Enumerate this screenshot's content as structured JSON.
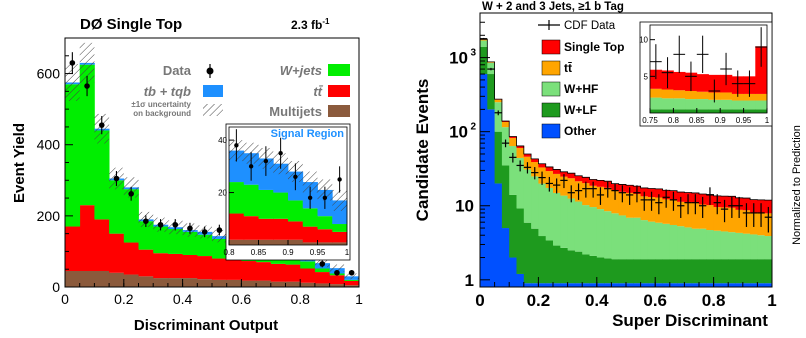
{
  "chart_data": [
    {
      "type": "bar",
      "stacked": true,
      "title": "DØ Single Top",
      "luminosity": "2.3 fb",
      "luminosity_unit_superscript": "-1",
      "xlabel": "Discriminant Output",
      "ylabel": "Event Yield",
      "xlim": [
        0,
        1
      ],
      "ylim": [
        0,
        700
      ],
      "xticks": [
        "0",
        "0.2",
        "0.4",
        "0.6",
        "0.8",
        "1"
      ],
      "yticks": [
        "0",
        "200",
        "400",
        "600"
      ],
      "bin_centers": [
        0.025,
        0.075,
        0.125,
        0.175,
        0.225,
        0.275,
        0.325,
        0.375,
        0.425,
        0.475,
        0.525,
        0.575,
        0.625,
        0.675,
        0.725,
        0.775,
        0.825,
        0.875,
        0.925,
        0.975
      ],
      "series": [
        {
          "name": "Multijets",
          "color": "#8b5a3c",
          "values": [
            45,
            45,
            45,
            40,
            35,
            30,
            25,
            25,
            25,
            22,
            20,
            20,
            18,
            18,
            15,
            15,
            12,
            10,
            8,
            5
          ]
        },
        {
          "name": "tt̄",
          "color": "#ff0000",
          "values": [
            125,
            185,
            145,
            110,
            90,
            75,
            70,
            68,
            65,
            65,
            60,
            58,
            55,
            52,
            50,
            48,
            40,
            32,
            25,
            12
          ]
        },
        {
          "name": "W+jets",
          "color": "#00ee00",
          "values": [
            400,
            395,
            250,
            150,
            150,
            80,
            75,
            70,
            65,
            60,
            55,
            50,
            45,
            40,
            35,
            30,
            20,
            10,
            5,
            3
          ]
        },
        {
          "name": "tb + tqb",
          "color": "#1e90ff",
          "values": [
            5,
            5,
            5,
            5,
            5,
            5,
            5,
            5,
            5,
            8,
            8,
            10,
            10,
            12,
            12,
            15,
            15,
            15,
            15,
            10
          ]
        }
      ],
      "data_points": {
        "name": "Data",
        "values": [
          630,
          565,
          455,
          305,
          262,
          185,
          175,
          175,
          165,
          155,
          160,
          145,
          135,
          122,
          118,
          105,
          98,
          65,
          40,
          40
        ]
      },
      "legend": {
        "placement": "top-right",
        "entries": [
          "Data",
          "tb + tqb",
          "±1σ uncertainty",
          "on background",
          "W+jets",
          "tt̄",
          "Multijets"
        ]
      },
      "inset": {
        "title": "Signal Region",
        "xlim": [
          0.8,
          1
        ],
        "ylim": [
          0,
          45
        ],
        "xticks": [
          "0.8",
          "0.85",
          "0.9",
          "0.95",
          "1"
        ],
        "yticks": [
          "20",
          "40"
        ],
        "bin_centers": [
          0.8125,
          0.8375,
          0.8625,
          0.8875,
          0.9125,
          0.9375,
          0.9625,
          0.9875
        ],
        "series": [
          {
            "name": "Multijets",
            "values": [
              2,
              2,
              2,
              2,
              2,
              1,
              1,
              1
            ]
          },
          {
            "name": "tt̄",
            "values": [
              10,
              9,
              8,
              8,
              7,
              6,
              5,
              4
            ]
          },
          {
            "name": "W+jets",
            "values": [
              12,
              12,
              11,
              10,
              8,
              7,
              5,
              3
            ]
          },
          {
            "name": "tb + tqb",
            "values": [
              12,
              12,
              12,
              11,
              11,
              10,
              10,
              9
            ]
          }
        ],
        "data_points": [
          38,
          30,
          32,
          35,
          26,
          18,
          18,
          25
        ]
      }
    },
    {
      "type": "bar",
      "stacked": true,
      "title": "W + 2 and 3 Jets, ≥1 b Tag",
      "xlabel": "Super Discriminant",
      "ylabel": "Candidate Events",
      "yscale": "log",
      "xlim": [
        0,
        1
      ],
      "ylim": [
        0.8,
        4000
      ],
      "xticks": [
        "0",
        "0.2",
        "0.4",
        "0.6",
        "0.8",
        "1"
      ],
      "yticks": [
        "1",
        "10",
        "10²",
        "10³"
      ],
      "bin_centers": [
        0.0125,
        0.0375,
        0.0625,
        0.0875,
        0.1125,
        0.1375,
        0.1625,
        0.1875,
        0.2125,
        0.2375,
        0.2625,
        0.2875,
        0.3125,
        0.3375,
        0.3625,
        0.3875,
        0.4125,
        0.4375,
        0.4625,
        0.4875,
        0.5125,
        0.5375,
        0.5625,
        0.5875,
        0.6125,
        0.6375,
        0.6625,
        0.6875,
        0.7125,
        0.7375,
        0.7625,
        0.7875,
        0.8125,
        0.8375,
        0.8625,
        0.8875,
        0.9125,
        0.9375,
        0.9625,
        0.9875
      ],
      "series": [
        {
          "name": "Other",
          "color": "#0050ff",
          "values": [
            600,
            200,
            20,
            5,
            2,
            1.2,
            0.9,
            0.9,
            0.9,
            0.9,
            0.9,
            0.9,
            0.9,
            0.9,
            0.9,
            0.9,
            0.9,
            0.9,
            0.9,
            0.9,
            0.9,
            0.9,
            0.9,
            0.9,
            0.9,
            0.9,
            0.9,
            0.9,
            0.9,
            0.9,
            0.9,
            0.9,
            0.9,
            0.9,
            0.9,
            0.9,
            0.9,
            0.9,
            0.9,
            0.9
          ]
        },
        {
          "name": "W+LF",
          "color": "#1e9a1e",
          "values": [
            800,
            400,
            80,
            30,
            12,
            8,
            5,
            4,
            3,
            2.5,
            2,
            1.8,
            1.6,
            1.5,
            1.3,
            1.2,
            1.1,
            1.05,
            1,
            1,
            1,
            1,
            1,
            1,
            1,
            1,
            1,
            1,
            1,
            1,
            1,
            1,
            1,
            1,
            1,
            1,
            1,
            1,
            1,
            1
          ]
        },
        {
          "name": "W+HF",
          "color": "#7be07b",
          "values": [
            300,
            250,
            150,
            80,
            50,
            35,
            25,
            20,
            16,
            14,
            12,
            11,
            10,
            9,
            8,
            7.5,
            7,
            6.5,
            6,
            5.5,
            5,
            5,
            4.5,
            4.2,
            4,
            3.8,
            3.6,
            3.4,
            3.2,
            3,
            3,
            2.8,
            2.7,
            2.6,
            2.5,
            2.4,
            2.3,
            2.2,
            2.1,
            2
          ]
        },
        {
          "name": "tt̄",
          "color": "#ffa500",
          "values": [
            50,
            20,
            20,
            20,
            18,
            16,
            15,
            14,
            13,
            12,
            12,
            11,
            11,
            10,
            10,
            9,
            9,
            9,
            8,
            8,
            8,
            7.5,
            7,
            7,
            7,
            6.5,
            6.5,
            6,
            6,
            6,
            5.5,
            5.5,
            5,
            5,
            5,
            4.5,
            4.5,
            4,
            4,
            4
          ]
        },
        {
          "name": "Single Top",
          "color": "#ff0000",
          "values": [
            10,
            5,
            5,
            4,
            4,
            4,
            4,
            4,
            4,
            4,
            4,
            4,
            4,
            4,
            4,
            4,
            4,
            4,
            4,
            4,
            4,
            4,
            4,
            4,
            4,
            4,
            4,
            4,
            4,
            4,
            4,
            4,
            4,
            4,
            4,
            4,
            4,
            4,
            4,
            4
          ]
        }
      ],
      "data_points": {
        "name": "CDF Data",
        "values": [
          1800,
          700,
          180,
          70,
          45,
          35,
          33,
          28,
          24,
          20,
          19,
          22,
          15,
          16,
          17,
          17,
          14,
          17,
          16,
          15,
          14,
          15,
          12,
          12,
          11,
          13,
          12,
          10,
          11,
          11,
          10,
          14,
          11,
          9,
          10,
          10,
          8,
          8,
          8,
          7
        ]
      },
      "legend": {
        "placement": "top-left",
        "entries": [
          "CDF Data",
          "Single Top",
          "tt̄",
          "W+HF",
          "W+LF",
          "Other"
        ]
      },
      "inset": {
        "xlim": [
          0.75,
          1
        ],
        "ylim": [
          0,
          12
        ],
        "xticks": [
          "0.75",
          "0.8",
          "0.85",
          "0.9",
          "0.95",
          "1"
        ],
        "yticks": [
          "5",
          "10"
        ],
        "right_axis_label": "Normalized to Prediction",
        "bin_centers": [
          0.7625,
          0.7875,
          0.8125,
          0.8375,
          0.8625,
          0.8875,
          0.9125,
          0.9375,
          0.9625,
          0.9875
        ],
        "series": [
          {
            "name": "W+LF",
            "values": [
              0.5,
              0.5,
              0.5,
              0.5,
              0.5,
              0.5,
              0.5,
              0.5,
              0.5,
              0.5
            ]
          },
          {
            "name": "W+HF",
            "values": [
              1.6,
              1.5,
              1.5,
              1.4,
              1.4,
              1.3,
              1.3,
              1.2,
              1.2,
              1.2
            ]
          },
          {
            "name": "tt̄",
            "values": [
              1.2,
              1.2,
              1.1,
              1.1,
              1.0,
              1.0,
              1.0,
              0.9,
              0.9,
              0.9
            ]
          },
          {
            "name": "Single Top",
            "values": [
              2.6,
              2.6,
              2.5,
              2.5,
              2.4,
              2.4,
              2.4,
              2.4,
              2.4,
              6.5
            ]
          }
        ],
        "data_points": [
          7,
          5.5,
          8,
          5,
          8,
          3,
          6,
          4,
          4,
          9
        ]
      }
    }
  ]
}
